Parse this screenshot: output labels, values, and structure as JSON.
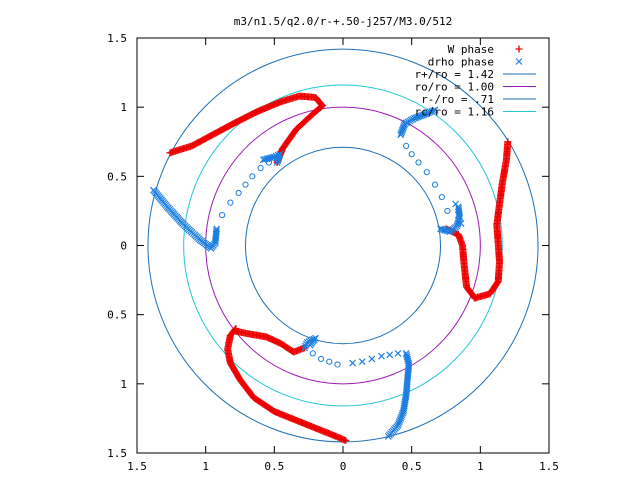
{
  "chart_data": {
    "type": "scatter",
    "title": "m3/n1.5/q2.0/r-+.50-j257/M3.0/512",
    "xlabel": "",
    "ylabel": "",
    "xlim": [
      -1.5,
      1.5
    ],
    "ylim": [
      -1.5,
      1.5
    ],
    "x_tick_values": [
      -1.5,
      -1,
      -0.5,
      0,
      0.5,
      1,
      1.5
    ],
    "x_tick_labels": [
      "1.5",
      "1",
      "0.5",
      "0",
      "0.5",
      "1",
      "1.5"
    ],
    "y_tick_values": [
      1.5,
      1,
      0.5,
      0,
      -0.5,
      -1,
      -1.5
    ],
    "y_tick_labels": [
      "1.5",
      "1",
      "0.5",
      "0",
      "0.5",
      "1",
      "1.5"
    ],
    "grid": false,
    "legend_position": "top-right",
    "circles": [
      {
        "label": "r+/ro = 1.42",
        "radius": 1.42,
        "color": "#1f6fb4"
      },
      {
        "label": "ro/ro = 1.00",
        "radius": 1.0,
        "color": "#9e1bb8"
      },
      {
        "label": "r-/ro = .71",
        "radius": 0.71,
        "color": "#1f6fb4"
      },
      {
        "label": "rc/ro = 1.16",
        "radius": 1.16,
        "color": "#22c8d6"
      }
    ],
    "series": [
      {
        "name": "W phase",
        "marker": "+",
        "color": "#ee0000",
        "polylines": [
          [
            [
              -1.26,
              0.67
            ],
            [
              -1.1,
              0.72
            ],
            [
              -0.95,
              0.8
            ],
            [
              -0.8,
              0.88
            ],
            [
              -0.62,
              0.97
            ],
            [
              -0.45,
              1.04
            ],
            [
              -0.32,
              1.08
            ],
            [
              -0.2,
              1.07
            ],
            [
              -0.15,
              1.01
            ],
            [
              -0.22,
              0.95
            ],
            [
              -0.34,
              0.84
            ],
            [
              -0.44,
              0.7
            ],
            [
              -0.48,
              0.6
            ]
          ],
          [
            [
              1.2,
              0.75
            ],
            [
              1.19,
              0.62
            ],
            [
              1.16,
              0.45
            ],
            [
              1.14,
              0.3
            ],
            [
              1.12,
              0.15
            ],
            [
              1.13,
              0.02
            ],
            [
              1.14,
              -0.12
            ],
            [
              1.13,
              -0.26
            ],
            [
              1.07,
              -0.35
            ],
            [
              0.96,
              -0.38
            ],
            [
              0.9,
              -0.3
            ],
            [
              0.88,
              -0.12
            ],
            [
              0.87,
              0.0
            ],
            [
              0.84,
              0.08
            ],
            [
              0.75,
              0.12
            ]
          ],
          [
            [
              -0.78,
              -0.6
            ],
            [
              -0.82,
              -0.65
            ],
            [
              -0.84,
              -0.75
            ],
            [
              -0.82,
              -0.85
            ],
            [
              -0.75,
              -0.97
            ],
            [
              -0.65,
              -1.1
            ],
            [
              -0.5,
              -1.2
            ],
            [
              -0.35,
              -1.26
            ],
            [
              -0.2,
              -1.32
            ],
            [
              -0.05,
              -1.38
            ],
            [
              0.02,
              -1.41
            ]
          ],
          [
            [
              -0.78,
              -0.62
            ],
            [
              -0.68,
              -0.64
            ],
            [
              -0.56,
              -0.66
            ],
            [
              -0.45,
              -0.71
            ],
            [
              -0.36,
              -0.77
            ],
            [
              -0.28,
              -0.74
            ]
          ]
        ]
      },
      {
        "name": "drho phase",
        "marker": "x",
        "color": "#1e7fe0",
        "polylines": [
          [
            [
              -1.38,
              0.4
            ],
            [
              -1.28,
              0.28
            ],
            [
              -1.16,
              0.15
            ],
            [
              -1.04,
              0.04
            ],
            [
              -0.96,
              -0.02
            ],
            [
              -0.93,
              0.02
            ],
            [
              -0.92,
              0.12
            ]
          ],
          [
            [
              -0.48,
              0.6
            ],
            [
              -0.46,
              0.66
            ],
            [
              -0.5,
              0.64
            ],
            [
              -0.54,
              0.63
            ],
            [
              -0.58,
              0.62
            ]
          ],
          [
            [
              0.42,
              0.8
            ],
            [
              0.45,
              0.88
            ],
            [
              0.52,
              0.92
            ],
            [
              0.6,
              0.95
            ],
            [
              0.67,
              0.98
            ]
          ],
          [
            [
              0.71,
              0.12
            ],
            [
              0.78,
              0.1
            ],
            [
              0.83,
              0.14
            ],
            [
              0.85,
              0.2
            ],
            [
              0.84,
              0.28
            ]
          ],
          [
            [
              -0.28,
              -0.74
            ],
            [
              -0.26,
              -0.7
            ],
            [
              -0.2,
              -0.67
            ],
            [
              -0.24,
              -0.72
            ]
          ],
          [
            [
              0.46,
              -0.78
            ],
            [
              0.48,
              -0.86
            ],
            [
              0.47,
              -0.96
            ],
            [
              0.46,
              -1.08
            ],
            [
              0.44,
              -1.2
            ],
            [
              0.4,
              -1.3
            ],
            [
              0.33,
              -1.38
            ]
          ]
        ]
      },
      {
        "name": "drho phase (open markers)",
        "marker": "o",
        "color": "#1e7fe0",
        "points": [
          [
            -0.88,
            0.22
          ],
          [
            -0.82,
            0.31
          ],
          [
            -0.76,
            0.38
          ],
          [
            -0.71,
            0.44
          ],
          [
            -0.66,
            0.5
          ],
          [
            -0.6,
            0.56
          ],
          [
            -0.54,
            0.6
          ],
          [
            -0.22,
            -0.78
          ],
          [
            -0.16,
            -0.82
          ],
          [
            -0.1,
            -0.84
          ],
          [
            -0.04,
            -0.86
          ],
          [
            0.46,
            0.72
          ],
          [
            0.5,
            0.66
          ],
          [
            0.55,
            0.6
          ],
          [
            0.61,
            0.53
          ],
          [
            0.67,
            0.44
          ],
          [
            0.72,
            0.35
          ],
          [
            0.76,
            0.25
          ]
        ],
        "x_points": [
          [
            0.07,
            -0.85
          ],
          [
            0.14,
            -0.84
          ],
          [
            0.21,
            -0.82
          ],
          [
            0.28,
            -0.8
          ],
          [
            0.34,
            -0.79
          ],
          [
            0.4,
            -0.78
          ],
          [
            0.82,
            0.3
          ],
          [
            0.84,
            0.22
          ],
          [
            0.86,
            0.16
          ]
        ]
      }
    ]
  }
}
